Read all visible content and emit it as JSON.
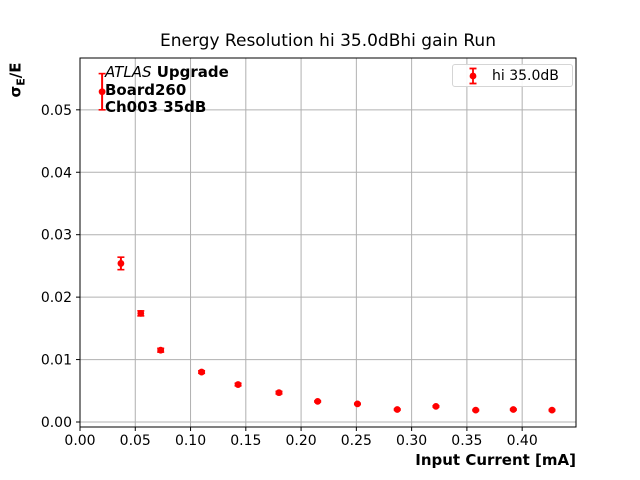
{
  "title": "Energy Resolution hi 35.0dBhi gain Run",
  "xlabel": "Input Current [mA]",
  "ylabel_parts": {
    "sigma": "σ",
    "sub": "E",
    "rest": "/E"
  },
  "legend": {
    "label": "hi 35.0dB"
  },
  "annotation": {
    "line1_italic": "ATLAS",
    "line1_bold": " Upgrade",
    "line2": "Board260",
    "line3": "Ch003 35dB"
  },
  "colors": {
    "series": "#ff0000",
    "grid": "#b0b0b0",
    "axis": "#000000",
    "legend_border": "#d5d5d5",
    "background": "#ffffff"
  },
  "chart_data": {
    "type": "scatter",
    "title": "Energy Resolution hi 35.0dBhi gain Run",
    "xlabel": "Input Current [mA]",
    "ylabel": "σ_E/E",
    "grid": true,
    "legend_position": "upper right",
    "xlim": [
      0.0,
      0.4487
    ],
    "ylim": [
      -0.0008,
      0.0583
    ],
    "xticks": [
      0.0,
      0.05,
      0.1,
      0.15,
      0.2,
      0.25,
      0.3,
      0.35,
      0.4
    ],
    "xtick_labels": [
      "0.00",
      "0.05",
      "0.10",
      "0.15",
      "0.20",
      "0.25",
      "0.30",
      "0.35",
      "0.40"
    ],
    "yticks": [
      0.0,
      0.01,
      0.02,
      0.03,
      0.04,
      0.05
    ],
    "ytick_labels": [
      "0.00",
      "0.01",
      "0.02",
      "0.03",
      "0.04",
      "0.05"
    ],
    "series": [
      {
        "name": "hi 35.0dB",
        "color": "#ff0000",
        "marker": "circle",
        "x": [
          0.02,
          0.037,
          0.055,
          0.073,
          0.11,
          0.143,
          0.18,
          0.215,
          0.251,
          0.287,
          0.322,
          0.358,
          0.392,
          0.427
        ],
        "y": [
          0.0529,
          0.0254,
          0.0174,
          0.0115,
          0.008,
          0.006,
          0.0047,
          0.0033,
          0.0029,
          0.002,
          0.0025,
          0.0019,
          0.002,
          0.0019
        ],
        "yerr": [
          0.0029,
          0.001,
          0.0004,
          0.0003,
          0.0002,
          0.0002,
          0.0002,
          0.0001,
          0.0001,
          0.0001,
          0.0001,
          0.0001,
          0.0001,
          0.0001
        ]
      }
    ]
  }
}
